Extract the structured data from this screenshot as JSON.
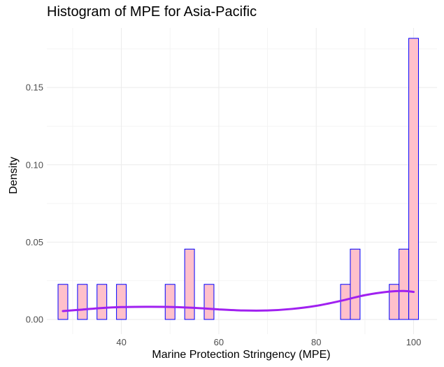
{
  "chart_data": {
    "type": "bar",
    "title": "Histogram of MPE for Asia-Pacific",
    "xlabel": "Marine Protection Stringency (MPE)",
    "ylabel": "Density",
    "xlim": [
      24.7,
      104.8
    ],
    "ylim": [
      -0.0095,
      0.1885
    ],
    "x_ticks": [
      40,
      60,
      80,
      100
    ],
    "y_ticks": [
      0.0,
      0.05,
      0.1,
      0.15
    ],
    "y_tick_labels": [
      "0.00",
      "0.05",
      "0.10",
      "0.15"
    ],
    "grid": true,
    "bar_fill": "#ffc0cb",
    "bar_outline": "#0000ff",
    "density_color": "#a020f0",
    "bars": [
      {
        "x0": 27.0,
        "x1": 29.0,
        "density": 0.0227
      },
      {
        "x0": 31.0,
        "x1": 33.0,
        "density": 0.0227
      },
      {
        "x0": 35.0,
        "x1": 37.0,
        "density": 0.0227
      },
      {
        "x0": 39.0,
        "x1": 41.0,
        "density": 0.0227
      },
      {
        "x0": 49.0,
        "x1": 51.0,
        "density": 0.0227
      },
      {
        "x0": 53.0,
        "x1": 55.0,
        "density": 0.0455
      },
      {
        "x0": 57.0,
        "x1": 59.0,
        "density": 0.0227
      },
      {
        "x0": 85.0,
        "x1": 87.0,
        "density": 0.0227
      },
      {
        "x0": 87.0,
        "x1": 89.0,
        "density": 0.0455
      },
      {
        "x0": 95.0,
        "x1": 97.0,
        "density": 0.0227
      },
      {
        "x0": 97.0,
        "x1": 99.0,
        "density": 0.0455
      },
      {
        "x0": 99.0,
        "x1": 101.0,
        "density": 0.1818
      }
    ],
    "density_curve": {
      "x": [
        28,
        32,
        36,
        40,
        45,
        50,
        55,
        60,
        65,
        70,
        75,
        80,
        85,
        90,
        95,
        98,
        100
      ],
      "y": [
        0.0054,
        0.0064,
        0.0074,
        0.008,
        0.0082,
        0.0081,
        0.0075,
        0.0065,
        0.0058,
        0.0058,
        0.0068,
        0.0088,
        0.012,
        0.0157,
        0.018,
        0.0184,
        0.0178
      ]
    }
  }
}
